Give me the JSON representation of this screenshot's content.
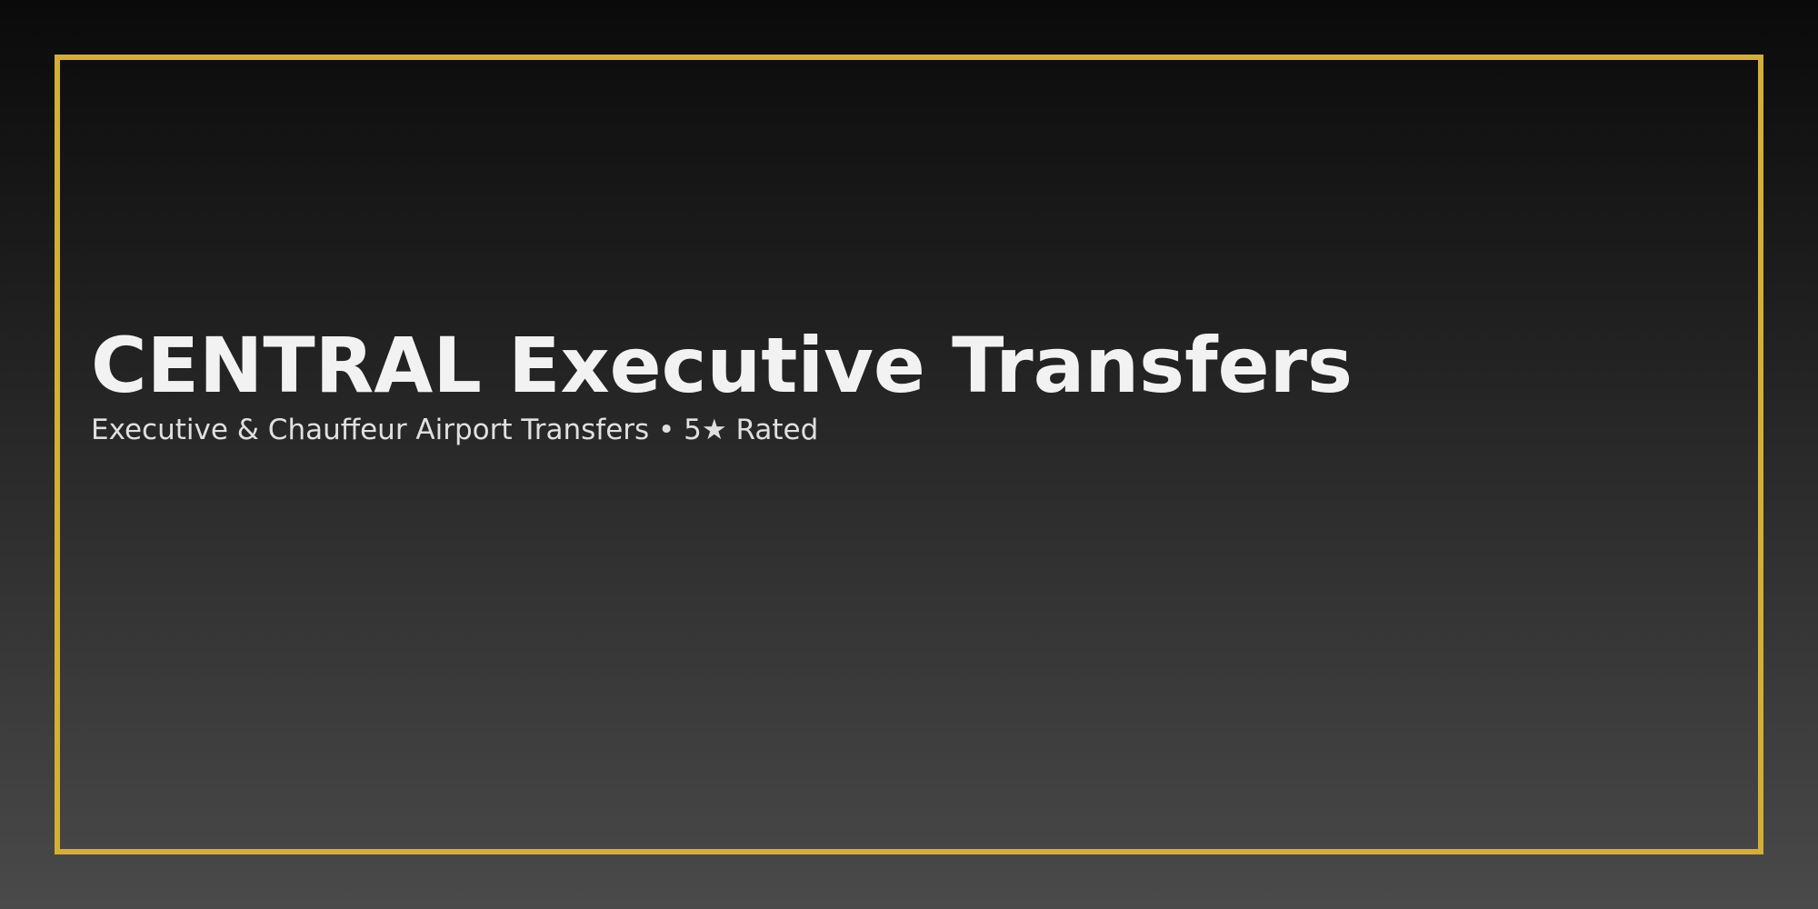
{
  "banner": {
    "title": "CENTRAL Executive Transfers",
    "subtitle": "Executive & Chauffeur Airport Transfers • 5★ Rated",
    "accent_color": "#d4af37",
    "text_color": "#f2f2f2"
  }
}
